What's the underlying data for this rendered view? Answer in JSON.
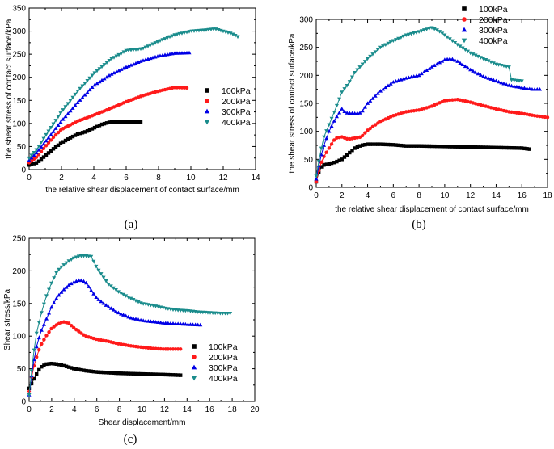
{
  "series_names": [
    "100kPa",
    "200kPa",
    "300kPa",
    "400kPa"
  ],
  "series_colors": [
    "#000000",
    "#ff1a1a",
    "#0000e6",
    "#1a8c8c"
  ],
  "series_markers": [
    "square",
    "circle",
    "triangle-up",
    "triangle-down"
  ],
  "chart_data": [
    {
      "type": "line",
      "caption": "(a)",
      "xlabel": "the relative shear displacement of contact surface/mm",
      "ylabel": "the shear stress of contact surface/kPa",
      "xlim": [
        0,
        14
      ],
      "ylim": [
        0,
        350
      ],
      "xticks": [
        0,
        2,
        4,
        6,
        8,
        10,
        12,
        14
      ],
      "yticks": [
        0,
        50,
        100,
        150,
        200,
        250,
        300,
        350
      ],
      "legend_position": "lower-right",
      "series": [
        {
          "name": "100kPa",
          "step": 0.15,
          "points": [
            [
              0,
              10
            ],
            [
              0.5,
              15
            ],
            [
              1,
              30
            ],
            [
              1.5,
              45
            ],
            [
              2,
              58
            ],
            [
              2.5,
              68
            ],
            [
              3,
              77
            ],
            [
              3.5,
              82
            ],
            [
              4,
              90
            ],
            [
              4.5,
              98
            ],
            [
              5,
              103
            ],
            [
              6.9,
              103
            ]
          ]
        },
        {
          "name": "200kPa",
          "step": 0.15,
          "points": [
            [
              0,
              15
            ],
            [
              0.5,
              28
            ],
            [
              1,
              50
            ],
            [
              1.5,
              70
            ],
            [
              2,
              87
            ],
            [
              3,
              105
            ],
            [
              4,
              118
            ],
            [
              5,
              132
            ],
            [
              6,
              147
            ],
            [
              7,
              160
            ],
            [
              8,
              170
            ],
            [
              9,
              178
            ],
            [
              9.8,
              177
            ]
          ]
        },
        {
          "name": "300kPa",
          "step": 0.15,
          "points": [
            [
              0,
              20
            ],
            [
              0.5,
              38
            ],
            [
              1,
              60
            ],
            [
              2,
              105
            ],
            [
              3,
              145
            ],
            [
              4,
              182
            ],
            [
              5,
              205
            ],
            [
              6,
              222
            ],
            [
              7,
              236
            ],
            [
              8,
              246
            ],
            [
              9,
              252
            ],
            [
              9.9,
              253
            ]
          ]
        },
        {
          "name": "400kPa",
          "step": 0.15,
          "points": [
            [
              0,
              25
            ],
            [
              0.5,
              45
            ],
            [
              1,
              73
            ],
            [
              2,
              125
            ],
            [
              3,
              170
            ],
            [
              4,
              208
            ],
            [
              5,
              238
            ],
            [
              6,
              258
            ],
            [
              7,
              262
            ],
            [
              8,
              278
            ],
            [
              9,
              292
            ],
            [
              10,
              300
            ],
            [
              11,
              303
            ],
            [
              11.5,
              305
            ],
            [
              12,
              300
            ],
            [
              12.5,
              295
            ],
            [
              12.9,
              288
            ]
          ]
        }
      ]
    },
    {
      "type": "line",
      "caption": "(b)",
      "xlabel": "the relative shear displacement of contact surface/mm",
      "ylabel": "the shear stress of contact surface/kPa",
      "xlim": [
        0,
        18
      ],
      "ylim": [
        0,
        300
      ],
      "xticks": [
        0,
        2,
        4,
        6,
        8,
        10,
        12,
        14,
        16,
        18
      ],
      "yticks": [
        0,
        50,
        100,
        150,
        200,
        250,
        300
      ],
      "legend_position": "top-right",
      "series": [
        {
          "name": "100kPa",
          "step": 0.2,
          "points": [
            [
              0,
              10
            ],
            [
              0.3,
              35
            ],
            [
              0.6,
              40
            ],
            [
              1,
              42
            ],
            [
              1.5,
              45
            ],
            [
              2,
              50
            ],
            [
              2.5,
              60
            ],
            [
              3,
              70
            ],
            [
              3.5,
              75
            ],
            [
              4,
              77
            ],
            [
              5,
              77
            ],
            [
              6,
              76
            ],
            [
              7,
              74
            ],
            [
              8,
              74
            ],
            [
              10,
              73
            ],
            [
              12,
              72
            ],
            [
              14,
              71
            ],
            [
              16,
              70
            ],
            [
              16.7,
              68
            ]
          ]
        },
        {
          "name": "200kPa",
          "step": 0.2,
          "points": [
            [
              0,
              10
            ],
            [
              0.3,
              40
            ],
            [
              0.6,
              55
            ],
            [
              1,
              70
            ],
            [
              1.5,
              88
            ],
            [
              2,
              90
            ],
            [
              2.5,
              86
            ],
            [
              3,
              88
            ],
            [
              3.5,
              90
            ],
            [
              4,
              102
            ],
            [
              5,
              118
            ],
            [
              6,
              128
            ],
            [
              7,
              135
            ],
            [
              8,
              138
            ],
            [
              9,
              145
            ],
            [
              10,
              155
            ],
            [
              11,
              157
            ],
            [
              12,
              152
            ],
            [
              13,
              146
            ],
            [
              14,
              140
            ],
            [
              15,
              135
            ],
            [
              16,
              132
            ],
            [
              17,
              128
            ],
            [
              18,
              125
            ]
          ]
        },
        {
          "name": "300kPa",
          "step": 0.2,
          "points": [
            [
              0,
              15
            ],
            [
              0.3,
              50
            ],
            [
              0.6,
              75
            ],
            [
              1,
              100
            ],
            [
              1.5,
              123
            ],
            [
              2,
              140
            ],
            [
              2.3,
              133
            ],
            [
              3,
              132
            ],
            [
              3.5,
              133
            ],
            [
              4,
              150
            ],
            [
              5,
              172
            ],
            [
              6,
              188
            ],
            [
              7,
              195
            ],
            [
              8,
              200
            ],
            [
              9,
              215
            ],
            [
              10,
              228
            ],
            [
              10.5,
              230
            ],
            [
              11,
              225
            ],
            [
              12,
              210
            ],
            [
              13,
              198
            ],
            [
              14,
              190
            ],
            [
              15,
              182
            ],
            [
              16,
              178
            ],
            [
              16.8,
              175
            ],
            [
              17.5,
              175
            ]
          ]
        },
        {
          "name": "400kPa",
          "step": 0.2,
          "points": [
            [
              0,
              20
            ],
            [
              0.3,
              60
            ],
            [
              0.6,
              90
            ],
            [
              1,
              112
            ],
            [
              1.5,
              140
            ],
            [
              2,
              170
            ],
            [
              2.5,
              185
            ],
            [
              3,
              205
            ],
            [
              4,
              230
            ],
            [
              5,
              250
            ],
            [
              6,
              262
            ],
            [
              7,
              272
            ],
            [
              8,
              278
            ],
            [
              8.5,
              282
            ],
            [
              9,
              285
            ],
            [
              9.5,
              280
            ],
            [
              10,
              272
            ],
            [
              11,
              255
            ],
            [
              12,
              240
            ],
            [
              13,
              230
            ],
            [
              14,
              220
            ],
            [
              15,
              215
            ],
            [
              15.2,
              192
            ],
            [
              16,
              190
            ]
          ]
        }
      ]
    },
    {
      "type": "line",
      "caption": "(c)",
      "xlabel": "Shear displacement/mm",
      "ylabel": "Shear stress/kPa",
      "xlim": [
        0,
        20
      ],
      "ylim": [
        0,
        250
      ],
      "xticks": [
        0,
        2,
        4,
        6,
        8,
        10,
        12,
        14,
        16,
        18,
        20
      ],
      "yticks": [
        0,
        50,
        100,
        150,
        200,
        250
      ],
      "legend_position": "center-right",
      "series": [
        {
          "name": "100kPa",
          "step": 0.22,
          "points": [
            [
              0,
              20
            ],
            [
              0.3,
              30
            ],
            [
              0.6,
              40
            ],
            [
              1,
              52
            ],
            [
              1.5,
              57
            ],
            [
              2,
              58
            ],
            [
              2.5,
              57
            ],
            [
              3,
              55
            ],
            [
              4,
              50
            ],
            [
              5,
              47
            ],
            [
              6,
              45
            ],
            [
              7,
              44
            ],
            [
              8,
              43
            ],
            [
              10,
              42
            ],
            [
              12,
              41
            ],
            [
              13.5,
              40
            ]
          ]
        },
        {
          "name": "200kPa",
          "step": 0.22,
          "points": [
            [
              0,
              15
            ],
            [
              0.3,
              45
            ],
            [
              0.6,
              65
            ],
            [
              1,
              85
            ],
            [
              1.5,
              100
            ],
            [
              2,
              112
            ],
            [
              2.5,
              118
            ],
            [
              3,
              122
            ],
            [
              3.5,
              120
            ],
            [
              4,
              112
            ],
            [
              5,
              100
            ],
            [
              6,
              95
            ],
            [
              7,
              92
            ],
            [
              8,
              88
            ],
            [
              9,
              85
            ],
            [
              10,
              83
            ],
            [
              11,
              81
            ],
            [
              12,
              80
            ],
            [
              13.5,
              80
            ]
          ]
        },
        {
          "name": "300kPa",
          "step": 0.22,
          "points": [
            [
              0,
              10
            ],
            [
              0.3,
              50
            ],
            [
              0.6,
              80
            ],
            [
              1,
              105
            ],
            [
              1.5,
              125
            ],
            [
              2,
              145
            ],
            [
              2.5,
              160
            ],
            [
              3,
              170
            ],
            [
              3.5,
              178
            ],
            [
              4,
              183
            ],
            [
              4.5,
              186
            ],
            [
              5,
              183
            ],
            [
              5.5,
              170
            ],
            [
              6,
              158
            ],
            [
              7,
              145
            ],
            [
              8,
              135
            ],
            [
              9,
              128
            ],
            [
              10,
              124
            ],
            [
              11,
              122
            ],
            [
              12,
              120
            ],
            [
              13,
              119
            ],
            [
              14,
              118
            ],
            [
              15.3,
              117
            ]
          ]
        },
        {
          "name": "400kPa",
          "step": 0.22,
          "points": [
            [
              0,
              10
            ],
            [
              0.3,
              60
            ],
            [
              0.6,
              100
            ],
            [
              1,
              130
            ],
            [
              1.5,
              160
            ],
            [
              2,
              182
            ],
            [
              2.5,
              200
            ],
            [
              3,
              208
            ],
            [
              3.5,
              215
            ],
            [
              4,
              220
            ],
            [
              4.5,
              223
            ],
            [
              5,
              223
            ],
            [
              5.5,
              222
            ],
            [
              6,
              205
            ],
            [
              7,
              180
            ],
            [
              8,
              167
            ],
            [
              9,
              158
            ],
            [
              10,
              150
            ],
            [
              11,
              147
            ],
            [
              12,
              143
            ],
            [
              13,
              140
            ],
            [
              14,
              139
            ],
            [
              15,
              137
            ],
            [
              16,
              136
            ],
            [
              17,
              135
            ],
            [
              18,
              135
            ]
          ]
        }
      ]
    }
  ]
}
